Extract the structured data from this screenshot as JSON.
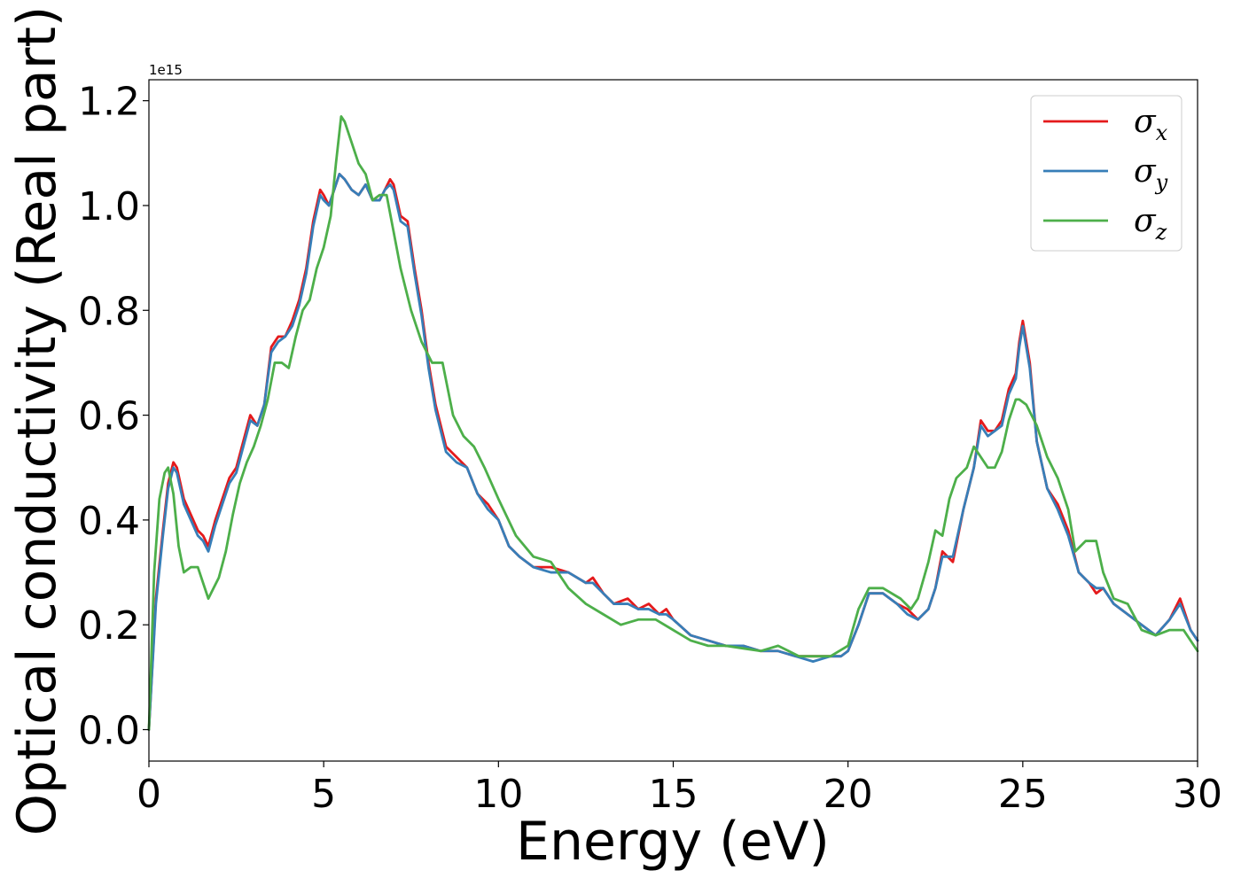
{
  "chart_data": {
    "type": "line",
    "title": "",
    "xlabel": "Energy (eV)",
    "ylabel": "Optical conductivity (Real part)",
    "y_offset_label": "1e15",
    "xlim": [
      0,
      30
    ],
    "ylim": [
      -0.06,
      1.24
    ],
    "x_ticks": [
      0,
      5,
      10,
      15,
      20,
      25,
      30
    ],
    "y_ticks": [
      0.0,
      0.2,
      0.4,
      0.6,
      0.8,
      1.0,
      1.2
    ],
    "x_tick_labels": [
      "0",
      "5",
      "10",
      "15",
      "20",
      "25",
      "30"
    ],
    "y_tick_labels": [
      "0.0",
      "0.2",
      "0.4",
      "0.6",
      "0.8",
      "1.0",
      "1.2"
    ],
    "grid": false,
    "legend_position": "top-right",
    "series": [
      {
        "name": "σx",
        "legend_base": "σ",
        "legend_sub": "x",
        "color": "#e41a1c",
        "x": [
          0,
          0.2,
          0.4,
          0.55,
          0.7,
          0.8,
          1.0,
          1.2,
          1.4,
          1.55,
          1.7,
          1.9,
          2.1,
          2.3,
          2.5,
          2.7,
          2.9,
          3.1,
          3.3,
          3.5,
          3.7,
          3.9,
          4.1,
          4.3,
          4.5,
          4.7,
          4.9,
          5.0,
          5.15,
          5.3,
          5.45,
          5.6,
          5.8,
          6.0,
          6.2,
          6.4,
          6.6,
          6.75,
          6.9,
          7.0,
          7.2,
          7.4,
          7.6,
          7.8,
          8.0,
          8.2,
          8.5,
          8.8,
          9.1,
          9.4,
          9.7,
          10.0,
          10.3,
          10.6,
          11.0,
          11.5,
          12.0,
          12.5,
          12.7,
          13.0,
          13.3,
          13.7,
          14.0,
          14.3,
          14.6,
          14.8,
          15.0,
          15.5,
          16.0,
          16.5,
          17.0,
          17.5,
          18.0,
          18.5,
          19.0,
          19.5,
          19.8,
          20.0,
          20.3,
          20.6,
          21.0,
          21.4,
          21.7,
          22.0,
          22.3,
          22.5,
          22.7,
          23.0,
          23.3,
          23.6,
          23.8,
          24.0,
          24.2,
          24.4,
          24.6,
          24.8,
          24.9,
          25.0,
          25.2,
          25.4,
          25.7,
          26.0,
          26.3,
          26.6,
          26.9,
          27.1,
          27.3,
          27.6,
          28.0,
          28.4,
          28.8,
          29.2,
          29.5,
          29.8,
          30.0
        ],
        "y": [
          0.0,
          0.25,
          0.38,
          0.47,
          0.51,
          0.5,
          0.44,
          0.41,
          0.38,
          0.37,
          0.35,
          0.4,
          0.44,
          0.48,
          0.5,
          0.55,
          0.6,
          0.58,
          0.62,
          0.73,
          0.75,
          0.75,
          0.78,
          0.82,
          0.88,
          0.97,
          1.03,
          1.02,
          1.0,
          1.03,
          1.06,
          1.05,
          1.03,
          1.02,
          1.04,
          1.01,
          1.01,
          1.03,
          1.05,
          1.04,
          0.98,
          0.97,
          0.88,
          0.8,
          0.7,
          0.62,
          0.54,
          0.52,
          0.5,
          0.45,
          0.43,
          0.4,
          0.35,
          0.33,
          0.31,
          0.31,
          0.3,
          0.28,
          0.29,
          0.26,
          0.24,
          0.25,
          0.23,
          0.24,
          0.22,
          0.23,
          0.21,
          0.18,
          0.17,
          0.16,
          0.16,
          0.15,
          0.15,
          0.14,
          0.14,
          0.14,
          0.14,
          0.15,
          0.2,
          0.26,
          0.26,
          0.24,
          0.23,
          0.21,
          0.23,
          0.27,
          0.34,
          0.32,
          0.42,
          0.5,
          0.59,
          0.57,
          0.57,
          0.59,
          0.65,
          0.68,
          0.74,
          0.78,
          0.7,
          0.55,
          0.46,
          0.43,
          0.38,
          0.3,
          0.28,
          0.26,
          0.27,
          0.24,
          0.22,
          0.2,
          0.18,
          0.21,
          0.25,
          0.19,
          0.17
        ]
      },
      {
        "name": "σy",
        "legend_base": "σ",
        "legend_sub": "y",
        "color": "#377eb8",
        "x": [
          0,
          0.2,
          0.4,
          0.55,
          0.7,
          0.8,
          1.0,
          1.2,
          1.4,
          1.55,
          1.7,
          1.9,
          2.1,
          2.3,
          2.5,
          2.7,
          2.9,
          3.1,
          3.3,
          3.5,
          3.7,
          3.9,
          4.1,
          4.3,
          4.5,
          4.7,
          4.9,
          5.0,
          5.15,
          5.3,
          5.45,
          5.6,
          5.8,
          6.0,
          6.2,
          6.4,
          6.6,
          6.75,
          6.9,
          7.0,
          7.2,
          7.4,
          7.6,
          7.8,
          8.0,
          8.2,
          8.5,
          8.8,
          9.1,
          9.4,
          9.7,
          10.0,
          10.3,
          10.6,
          11.0,
          11.5,
          12.0,
          12.5,
          12.7,
          13.0,
          13.3,
          13.7,
          14.0,
          14.3,
          14.6,
          14.8,
          15.0,
          15.5,
          16.0,
          16.5,
          17.0,
          17.5,
          18.0,
          18.5,
          19.0,
          19.5,
          19.8,
          20.0,
          20.3,
          20.6,
          21.0,
          21.4,
          21.7,
          22.0,
          22.3,
          22.5,
          22.7,
          23.0,
          23.3,
          23.6,
          23.8,
          24.0,
          24.2,
          24.4,
          24.6,
          24.8,
          24.9,
          25.0,
          25.2,
          25.4,
          25.7,
          26.0,
          26.3,
          26.6,
          26.9,
          27.1,
          27.3,
          27.6,
          28.0,
          28.4,
          28.8,
          29.2,
          29.5,
          29.8,
          30.0
        ],
        "y": [
          0.0,
          0.24,
          0.37,
          0.46,
          0.5,
          0.49,
          0.43,
          0.4,
          0.37,
          0.36,
          0.34,
          0.39,
          0.43,
          0.47,
          0.49,
          0.54,
          0.59,
          0.58,
          0.62,
          0.72,
          0.74,
          0.75,
          0.77,
          0.81,
          0.87,
          0.96,
          1.02,
          1.01,
          1.0,
          1.03,
          1.06,
          1.05,
          1.03,
          1.02,
          1.04,
          1.01,
          1.01,
          1.03,
          1.04,
          1.03,
          0.97,
          0.96,
          0.87,
          0.79,
          0.69,
          0.61,
          0.53,
          0.51,
          0.5,
          0.45,
          0.42,
          0.4,
          0.35,
          0.33,
          0.31,
          0.3,
          0.3,
          0.28,
          0.28,
          0.26,
          0.24,
          0.24,
          0.23,
          0.23,
          0.22,
          0.22,
          0.21,
          0.18,
          0.17,
          0.16,
          0.16,
          0.15,
          0.15,
          0.14,
          0.13,
          0.14,
          0.14,
          0.15,
          0.2,
          0.26,
          0.26,
          0.24,
          0.22,
          0.21,
          0.23,
          0.27,
          0.33,
          0.33,
          0.42,
          0.5,
          0.58,
          0.56,
          0.57,
          0.58,
          0.64,
          0.67,
          0.73,
          0.77,
          0.69,
          0.55,
          0.46,
          0.42,
          0.37,
          0.3,
          0.28,
          0.27,
          0.27,
          0.24,
          0.22,
          0.2,
          0.18,
          0.21,
          0.24,
          0.19,
          0.17
        ]
      },
      {
        "name": "σz",
        "legend_base": "σ",
        "legend_sub": "z",
        "color": "#4daf4a",
        "x": [
          0,
          0.15,
          0.3,
          0.45,
          0.55,
          0.7,
          0.85,
          1.0,
          1.2,
          1.4,
          1.55,
          1.7,
          1.85,
          2.0,
          2.2,
          2.4,
          2.6,
          2.8,
          3.0,
          3.2,
          3.4,
          3.6,
          3.8,
          4.0,
          4.2,
          4.4,
          4.6,
          4.8,
          5.0,
          5.2,
          5.35,
          5.5,
          5.6,
          5.8,
          6.0,
          6.2,
          6.4,
          6.6,
          6.8,
          7.0,
          7.2,
          7.5,
          7.8,
          8.1,
          8.4,
          8.7,
          9.0,
          9.3,
          9.6,
          10.0,
          10.5,
          11.0,
          11.5,
          12.0,
          12.5,
          13.0,
          13.5,
          14.0,
          14.5,
          15.0,
          15.5,
          16.0,
          16.5,
          17.0,
          17.5,
          18.0,
          18.3,
          18.6,
          19.0,
          19.5,
          20.0,
          20.3,
          20.6,
          21.0,
          21.5,
          21.8,
          22.0,
          22.3,
          22.5,
          22.7,
          22.9,
          23.1,
          23.4,
          23.6,
          23.8,
          24.0,
          24.2,
          24.4,
          24.6,
          24.8,
          24.9,
          25.1,
          25.4,
          25.7,
          26.0,
          26.3,
          26.5,
          26.8,
          27.1,
          27.3,
          27.6,
          28.0,
          28.4,
          28.8,
          29.2,
          29.6,
          30.0
        ],
        "y": [
          0.0,
          0.3,
          0.44,
          0.49,
          0.5,
          0.45,
          0.35,
          0.3,
          0.31,
          0.31,
          0.28,
          0.25,
          0.27,
          0.29,
          0.34,
          0.41,
          0.47,
          0.51,
          0.54,
          0.58,
          0.63,
          0.7,
          0.7,
          0.69,
          0.75,
          0.8,
          0.82,
          0.88,
          0.92,
          0.98,
          1.08,
          1.17,
          1.16,
          1.12,
          1.08,
          1.06,
          1.01,
          1.02,
          1.02,
          0.95,
          0.88,
          0.8,
          0.74,
          0.7,
          0.7,
          0.6,
          0.56,
          0.54,
          0.5,
          0.44,
          0.37,
          0.33,
          0.32,
          0.27,
          0.24,
          0.22,
          0.2,
          0.21,
          0.21,
          0.19,
          0.17,
          0.16,
          0.16,
          0.155,
          0.15,
          0.16,
          0.15,
          0.14,
          0.14,
          0.14,
          0.16,
          0.23,
          0.27,
          0.27,
          0.25,
          0.23,
          0.25,
          0.32,
          0.38,
          0.37,
          0.44,
          0.48,
          0.5,
          0.54,
          0.52,
          0.5,
          0.5,
          0.53,
          0.59,
          0.63,
          0.63,
          0.62,
          0.58,
          0.52,
          0.48,
          0.42,
          0.34,
          0.36,
          0.36,
          0.3,
          0.25,
          0.24,
          0.19,
          0.18,
          0.19,
          0.19,
          0.15
        ]
      }
    ]
  }
}
